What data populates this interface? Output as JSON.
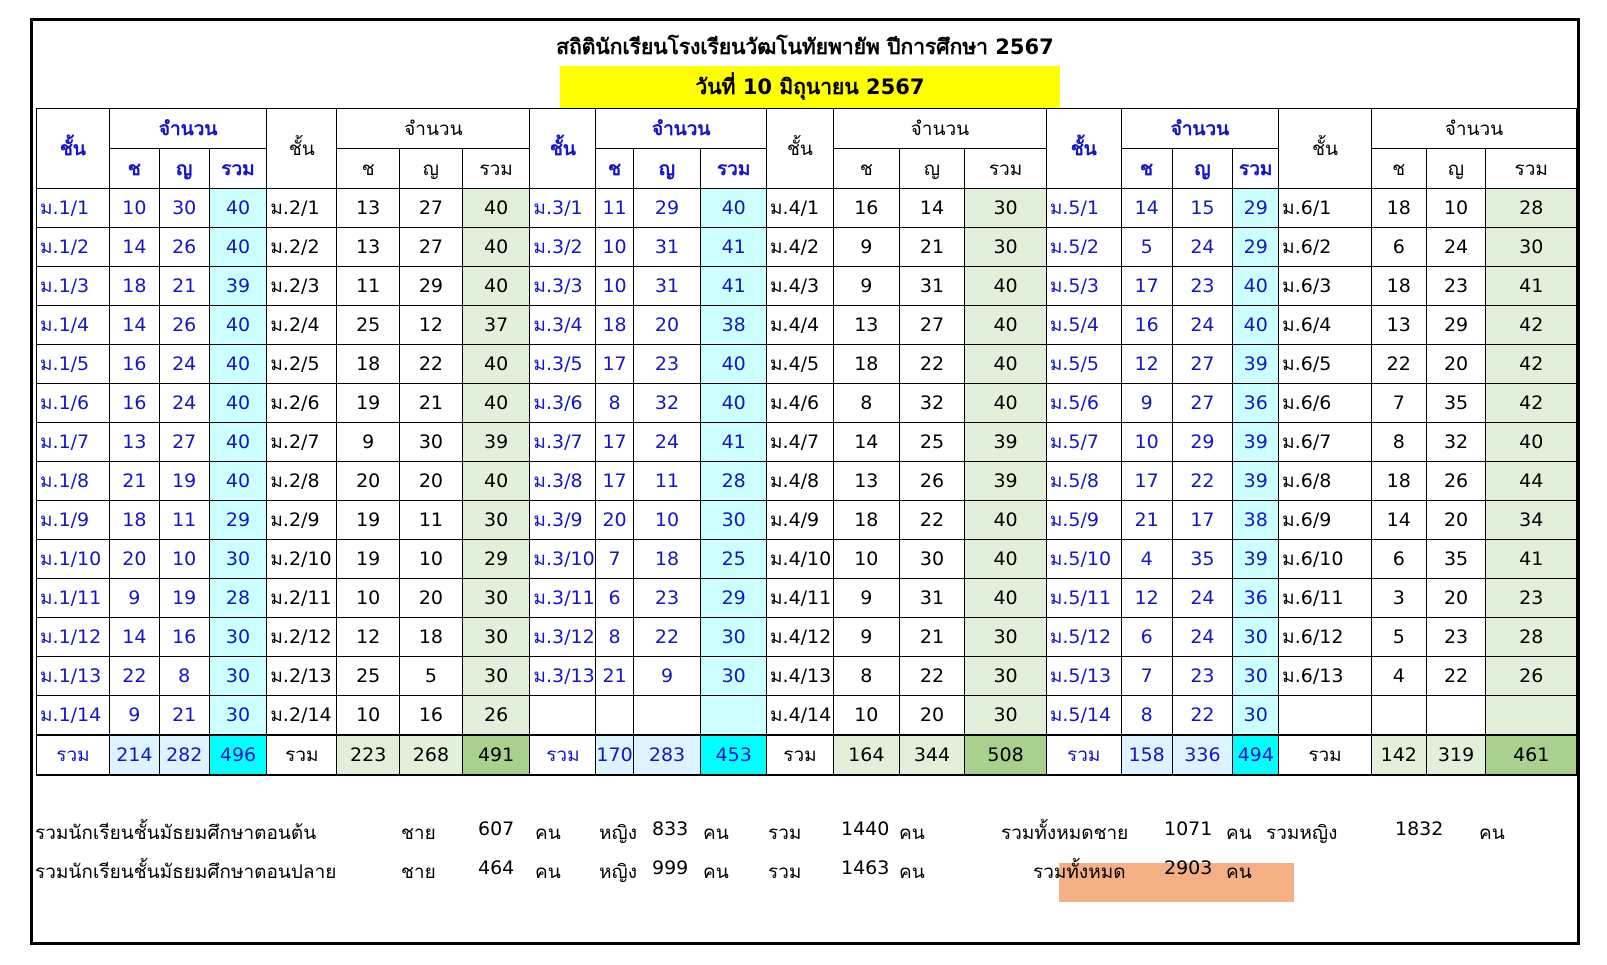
{
  "title": "สถิตินักเรียนโรงเรียนวัฒโนทัยพายัพ ปีการศึกษา 2567",
  "date": "วันที่ 10 มิถุนายน 2567",
  "headers": {
    "grade": "ชั้น",
    "count": "จำนวน",
    "male": "ช",
    "female": "ญ",
    "total": "รวม"
  },
  "total_label": "รวม",
  "grades": [
    {
      "rows": [
        {
          "c": "ม.1/1",
          "m": "10",
          "f": "30",
          "t": "40"
        },
        {
          "c": "ม.1/2",
          "m": "14",
          "f": "26",
          "t": "40"
        },
        {
          "c": "ม.1/3",
          "m": "18",
          "f": "21",
          "t": "39"
        },
        {
          "c": "ม.1/4",
          "m": "14",
          "f": "26",
          "t": "40"
        },
        {
          "c": "ม.1/5",
          "m": "16",
          "f": "24",
          "t": "40"
        },
        {
          "c": "ม.1/6",
          "m": "16",
          "f": "24",
          "t": "40"
        },
        {
          "c": "ม.1/7",
          "m": "13",
          "f": "27",
          "t": "40"
        },
        {
          "c": "ม.1/8",
          "m": "21",
          "f": "19",
          "t": "40"
        },
        {
          "c": "ม.1/9",
          "m": "18",
          "f": "11",
          "t": "29"
        },
        {
          "c": "ม.1/10",
          "m": "20",
          "f": "10",
          "t": "30"
        },
        {
          "c": "ม.1/11",
          "m": "9",
          "f": "19",
          "t": "28"
        },
        {
          "c": "ม.1/12",
          "m": "14",
          "f": "16",
          "t": "30"
        },
        {
          "c": "ม.1/13",
          "m": "22",
          "f": "8",
          "t": "30"
        },
        {
          "c": "ม.1/14",
          "m": "9",
          "f": "21",
          "t": "30"
        }
      ],
      "totals": {
        "m": "214",
        "f": "282",
        "t": "496"
      }
    },
    {
      "rows": [
        {
          "c": "ม.2/1",
          "m": "13",
          "f": "27",
          "t": "40"
        },
        {
          "c": "ม.2/2",
          "m": "13",
          "f": "27",
          "t": "40"
        },
        {
          "c": "ม.2/3",
          "m": "11",
          "f": "29",
          "t": "40"
        },
        {
          "c": "ม.2/4",
          "m": "25",
          "f": "12",
          "t": "37"
        },
        {
          "c": "ม.2/5",
          "m": "18",
          "f": "22",
          "t": "40"
        },
        {
          "c": "ม.2/6",
          "m": "19",
          "f": "21",
          "t": "40"
        },
        {
          "c": "ม.2/7",
          "m": "9",
          "f": "30",
          "t": "39"
        },
        {
          "c": "ม.2/8",
          "m": "20",
          "f": "20",
          "t": "40"
        },
        {
          "c": "ม.2/9",
          "m": "19",
          "f": "11",
          "t": "30"
        },
        {
          "c": "ม.2/10",
          "m": "19",
          "f": "10",
          "t": "29"
        },
        {
          "c": "ม.2/11",
          "m": "10",
          "f": "20",
          "t": "30"
        },
        {
          "c": "ม.2/12",
          "m": "12",
          "f": "18",
          "t": "30"
        },
        {
          "c": "ม.2/13",
          "m": "25",
          "f": "5",
          "t": "30"
        },
        {
          "c": "ม.2/14",
          "m": "10",
          "f": "16",
          "t": "26"
        }
      ],
      "totals": {
        "m": "223",
        "f": "268",
        "t": "491"
      }
    },
    {
      "rows": [
        {
          "c": "ม.3/1",
          "m": "11",
          "f": "29",
          "t": "40"
        },
        {
          "c": "ม.3/2",
          "m": "10",
          "f": "31",
          "t": "41"
        },
        {
          "c": "ม.3/3",
          "m": "10",
          "f": "31",
          "t": "41"
        },
        {
          "c": "ม.3/4",
          "m": "18",
          "f": "20",
          "t": "38"
        },
        {
          "c": "ม.3/5",
          "m": "17",
          "f": "23",
          "t": "40"
        },
        {
          "c": "ม.3/6",
          "m": "8",
          "f": "32",
          "t": "40"
        },
        {
          "c": "ม.3/7",
          "m": "17",
          "f": "24",
          "t": "41"
        },
        {
          "c": "ม.3/8",
          "m": "17",
          "f": "11",
          "t": "28"
        },
        {
          "c": "ม.3/9",
          "m": "20",
          "f": "10",
          "t": "30"
        },
        {
          "c": "ม.3/10",
          "m": "7",
          "f": "18",
          "t": "25"
        },
        {
          "c": "ม.3/11",
          "m": "6",
          "f": "23",
          "t": "29"
        },
        {
          "c": "ม.3/12",
          "m": "8",
          "f": "22",
          "t": "30"
        },
        {
          "c": "ม.3/13",
          "m": "21",
          "f": "9",
          "t": "30"
        },
        {
          "c": "",
          "m": "",
          "f": "",
          "t": ""
        }
      ],
      "totals": {
        "m": "170",
        "f": "283",
        "t": "453"
      }
    },
    {
      "rows": [
        {
          "c": "ม.4/1",
          "m": "16",
          "f": "14",
          "t": "30"
        },
        {
          "c": "ม.4/2",
          "m": "9",
          "f": "21",
          "t": "30"
        },
        {
          "c": "ม.4/3",
          "m": "9",
          "f": "31",
          "t": "40"
        },
        {
          "c": "ม.4/4",
          "m": "13",
          "f": "27",
          "t": "40"
        },
        {
          "c": "ม.4/5",
          "m": "18",
          "f": "22",
          "t": "40"
        },
        {
          "c": "ม.4/6",
          "m": "8",
          "f": "32",
          "t": "40"
        },
        {
          "c": "ม.4/7",
          "m": "14",
          "f": "25",
          "t": "39"
        },
        {
          "c": "ม.4/8",
          "m": "13",
          "f": "26",
          "t": "39"
        },
        {
          "c": "ม.4/9",
          "m": "18",
          "f": "22",
          "t": "40"
        },
        {
          "c": "ม.4/10",
          "m": "10",
          "f": "30",
          "t": "40"
        },
        {
          "c": "ม.4/11",
          "m": "9",
          "f": "31",
          "t": "40"
        },
        {
          "c": "ม.4/12",
          "m": "9",
          "f": "21",
          "t": "30"
        },
        {
          "c": "ม.4/13",
          "m": "8",
          "f": "22",
          "t": "30"
        },
        {
          "c": "ม.4/14",
          "m": "10",
          "f": "20",
          "t": "30"
        }
      ],
      "totals": {
        "m": "164",
        "f": "344",
        "t": "508"
      }
    },
    {
      "rows": [
        {
          "c": "ม.5/1",
          "m": "14",
          "f": "15",
          "t": "29"
        },
        {
          "c": "ม.5/2",
          "m": "5",
          "f": "24",
          "t": "29"
        },
        {
          "c": "ม.5/3",
          "m": "17",
          "f": "23",
          "t": "40"
        },
        {
          "c": "ม.5/4",
          "m": "16",
          "f": "24",
          "t": "40"
        },
        {
          "c": "ม.5/5",
          "m": "12",
          "f": "27",
          "t": "39"
        },
        {
          "c": "ม.5/6",
          "m": "9",
          "f": "27",
          "t": "36"
        },
        {
          "c": "ม.5/7",
          "m": "10",
          "f": "29",
          "t": "39"
        },
        {
          "c": "ม.5/8",
          "m": "17",
          "f": "22",
          "t": "39"
        },
        {
          "c": "ม.5/9",
          "m": "21",
          "f": "17",
          "t": "38"
        },
        {
          "c": "ม.5/10",
          "m": "4",
          "f": "35",
          "t": "39"
        },
        {
          "c": "ม.5/11",
          "m": "12",
          "f": "24",
          "t": "36"
        },
        {
          "c": "ม.5/12",
          "m": "6",
          "f": "24",
          "t": "30"
        },
        {
          "c": "ม.5/13",
          "m": "7",
          "f": "23",
          "t": "30"
        },
        {
          "c": "ม.5/14",
          "m": "8",
          "f": "22",
          "t": "30"
        }
      ],
      "totals": {
        "m": "158",
        "f": "336",
        "t": "494"
      }
    },
    {
      "rows": [
        {
          "c": "ม.6/1",
          "m": "18",
          "f": "10",
          "t": "28"
        },
        {
          "c": "ม.6/2",
          "m": "6",
          "f": "24",
          "t": "30"
        },
        {
          "c": "ม.6/3",
          "m": "18",
          "f": "23",
          "t": "41"
        },
        {
          "c": "ม.6/4",
          "m": "13",
          "f": "29",
          "t": "42"
        },
        {
          "c": "ม.6/5",
          "m": "22",
          "f": "20",
          "t": "42"
        },
        {
          "c": "ม.6/6",
          "m": "7",
          "f": "35",
          "t": "42"
        },
        {
          "c": "ม.6/7",
          "m": "8",
          "f": "32",
          "t": "40"
        },
        {
          "c": "ม.6/8",
          "m": "18",
          "f": "26",
          "t": "44"
        },
        {
          "c": "ม.6/9",
          "m": "14",
          "f": "20",
          "t": "34"
        },
        {
          "c": "ม.6/10",
          "m": "6",
          "f": "35",
          "t": "41"
        },
        {
          "c": "ม.6/11",
          "m": "3",
          "f": "20",
          "t": "23"
        },
        {
          "c": "ม.6/12",
          "m": "5",
          "f": "23",
          "t": "28"
        },
        {
          "c": "ม.6/13",
          "m": "4",
          "f": "22",
          "t": "26"
        },
        {
          "c": "",
          "m": "",
          "f": "",
          "t": ""
        }
      ],
      "totals": {
        "m": "142",
        "f": "319",
        "t": "461"
      }
    }
  ],
  "summary": {
    "lower": {
      "label": "รวมนักเรียนชั้นมัธยมศึกษาตอนต้น",
      "male_label": "ชาย",
      "male": "607",
      "unit": "คน",
      "female_label": "หญิง",
      "female": "833",
      "total_label": "รวม",
      "total": "1440"
    },
    "upper": {
      "label": "รวมนักเรียนชั้นมัธยมศึกษาตอนปลาย",
      "male_label": "ชาย",
      "male": "464",
      "unit": "คน",
      "female_label": "หญิง",
      "female": "999",
      "total_label": "รวม",
      "total": "1463"
    },
    "all_male_label": "รวมทั้งหมดชาย",
    "all_male": "1071",
    "all_female_label": "รวมหญิง",
    "all_female": "1832",
    "grand_label": "รวมทั้งหมด",
    "grand_total": "2903",
    "unit": "คน"
  },
  "colors": {
    "blue_text": "#1515c8",
    "title_highlight": "#ffff00",
    "cyan_fill": "#ccffff",
    "green_fill": "#e2efda",
    "grand_total_fill": "#f4b084"
  }
}
